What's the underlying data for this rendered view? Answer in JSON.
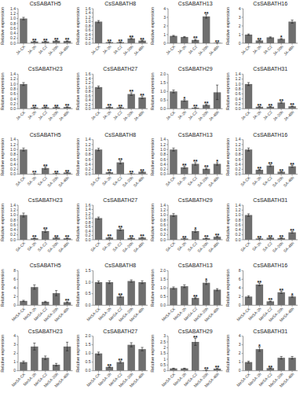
{
  "chart_data": [
    {
      "type": "bar",
      "title": "CsSABATH5",
      "y_label": "Relative expression",
      "categories": [
        "JA-CK",
        "JA-2h",
        "JA-C2",
        "JA-20h",
        "JA-48h"
      ],
      "values": [
        1.0,
        0.07,
        0.07,
        0.1,
        0.09
      ],
      "errors": [
        0.05,
        0.01,
        0.01,
        0.01,
        0.01
      ],
      "annotations": [
        null,
        "**",
        "**",
        "**",
        "**"
      ],
      "color": "#6e6e6e",
      "ylim": [
        0,
        1.4
      ],
      "yticks": [
        {
          "value": 0.0,
          "label": "0.0"
        },
        0.2,
        0.4,
        0.6,
        0.8,
        {
          "value": 1.0,
          "label": "1.0"
        },
        1.2,
        1.4
      ]
    },
    {
      "type": "bar",
      "title": "CsSABATH8",
      "y_label": "Relative expression",
      "categories": [
        "JA-CK",
        "JA-2h",
        "JA-C2",
        "JA-20h",
        "JA-48h"
      ],
      "values": [
        1.0,
        0.05,
        0.05,
        0.22,
        0.12
      ],
      "errors": [
        0.05,
        0.01,
        0.01,
        0.03,
        0.02
      ],
      "annotations": [
        null,
        "**",
        "**",
        "**",
        "**"
      ],
      "color": "#6e6e6e",
      "ylim": [
        0,
        1.6
      ],
      "yticks": [
        {
          "value": 0.0,
          "label": "0.0"
        },
        0.2,
        0.4,
        0.6,
        0.8,
        {
          "value": 1.0,
          "label": "1.0"
        },
        1.2,
        1.4,
        1.6
      ]
    },
    {
      "type": "bar",
      "title": "CsSABATH13",
      "y_label": "Relative expression",
      "categories": [
        "JA-CK",
        "JA-2h",
        "JA-C2",
        "JA-20h",
        "JA-48h"
      ],
      "values": [
        0.85,
        0.72,
        0.38,
        3.1,
        0.04
      ],
      "errors": [
        0.06,
        0.06,
        0.08,
        0.2,
        0.005
      ],
      "annotations": [
        null,
        null,
        "**",
        "**",
        "**"
      ],
      "color": "#6e6e6e",
      "ylim": [
        0,
        4.0
      ],
      "yticks": [
        0,
        1,
        2,
        3,
        4
      ]
    },
    {
      "type": "bar",
      "title": "CsSABATH16",
      "y_label": "Relative expression",
      "categories": [
        "JA-CK",
        "JA-2h",
        "JA-C2",
        "JA-20h",
        "JA-48h"
      ],
      "values": [
        1.0,
        0.32,
        0.68,
        0.5,
        2.5
      ],
      "errors": [
        0.08,
        0.04,
        0.06,
        0.05,
        0.18
      ],
      "annotations": [
        null,
        "**",
        null,
        "*",
        null
      ],
      "color": "#6e6e6e",
      "ylim": [
        0,
        4.0
      ],
      "yticks": [
        0,
        1,
        2,
        3,
        4
      ]
    },
    {
      "type": "bar",
      "title": "CsSABATH23",
      "y_label": "Relative expression",
      "categories": [
        "JA-CK",
        "JA-2h",
        "JA-C2",
        "JA-20h",
        "JA-48h"
      ],
      "values": [
        1.0,
        0.05,
        0.06,
        0.06,
        0.07
      ],
      "errors": [
        0.06,
        0.005,
        0.008,
        0.008,
        0.008
      ],
      "annotations": [
        null,
        "**",
        "**",
        "**",
        "**"
      ],
      "color": "#6e6e6e",
      "ylim": [
        0,
        1.4
      ],
      "yticks": [
        {
          "value": 0.0,
          "label": "0.0"
        },
        0.2,
        0.4,
        0.6,
        0.8,
        {
          "value": 1.0,
          "label": "1.0"
        },
        1.2,
        1.4
      ]
    },
    {
      "type": "bar",
      "title": "CsSABATH27",
      "y_label": "Relative expression",
      "categories": [
        "JA-CK",
        "JA-2h",
        "JA-C2",
        "JA-20h",
        "JA-48h"
      ],
      "values": [
        1.0,
        0.08,
        0.06,
        0.68,
        0.52
      ],
      "errors": [
        0.05,
        0.01,
        0.01,
        0.06,
        0.05
      ],
      "annotations": [
        null,
        "**",
        "**",
        "**",
        "**"
      ],
      "color": "#6e6e6e",
      "ylim": [
        0,
        1.6
      ],
      "yticks": [
        {
          "value": 0.0,
          "label": "0.0"
        },
        0.2,
        0.4,
        0.6,
        0.8,
        {
          "value": 1.0,
          "label": "1.0"
        },
        1.2,
        1.4,
        1.6
      ]
    },
    {
      "type": "bar",
      "title": "CsSABATH29",
      "y_label": "Relative expression",
      "categories": [
        "JA-CK",
        "JA-2h",
        "JA-C2",
        "JA-20h",
        "JA-48h"
      ],
      "values": [
        1.0,
        0.48,
        0.06,
        0.22,
        0.95
      ],
      "errors": [
        0.08,
        0.05,
        0.01,
        0.03,
        0.42
      ],
      "annotations": [
        null,
        "*",
        "**",
        "**",
        null
      ],
      "color": "#6e6e6e",
      "ylim": [
        0,
        2.0
      ],
      "yticks": [
        {
          "value": 0.0,
          "label": "0.0"
        },
        0.5,
        {
          "value": 1.0,
          "label": "1.0"
        },
        1.5,
        {
          "value": 2.0,
          "label": "2.0"
        }
      ]
    },
    {
      "type": "bar",
      "title": "CsSABATH31",
      "y_label": "Relative expression",
      "categories": [
        "JA-CK",
        "JA-2h",
        "JA-C2",
        "JA-20h",
        "JA-48h"
      ],
      "values": [
        1.0,
        0.08,
        0.08,
        0.25,
        0.1
      ],
      "errors": [
        0.06,
        0.01,
        0.01,
        0.03,
        0.01
      ],
      "annotations": [
        null,
        "**",
        "**",
        "**",
        "**"
      ],
      "color": "#6e6e6e",
      "ylim": [
        0,
        1.4
      ],
      "yticks": [
        {
          "value": 0.0,
          "label": "0.0"
        },
        0.2,
        0.4,
        0.6,
        0.8,
        {
          "value": 1.0,
          "label": "1.0"
        },
        1.2,
        1.4
      ]
    },
    {
      "type": "bar",
      "title": "CsSABATH5",
      "y_label": "Relative expression",
      "categories": [
        "SA-CK",
        "SA-2h",
        "SA-C2",
        "SA-20h",
        "SA-48h"
      ],
      "values": [
        1.0,
        0.02,
        0.25,
        0.04,
        0.07
      ],
      "errors": [
        0.06,
        0.003,
        0.04,
        0.005,
        0.01
      ],
      "annotations": [
        null,
        "**",
        "**",
        "**",
        "**"
      ],
      "color": "#6e6e6e",
      "ylim": [
        0,
        1.4
      ],
      "yticks": [
        {
          "value": 0.0,
          "label": "0.0"
        },
        0.2,
        0.4,
        0.6,
        0.8,
        {
          "value": 1.0,
          "label": "1.0"
        },
        1.2,
        1.4
      ]
    },
    {
      "type": "bar",
      "title": "CsSABATH8",
      "y_label": "Relative expression",
      "categories": [
        "SA-CK",
        "SA-2h",
        "SA-C2",
        "SA-20h",
        "SA-48h"
      ],
      "values": [
        1.0,
        0.08,
        0.48,
        0.03,
        0.1
      ],
      "errors": [
        0.05,
        0.01,
        0.06,
        0.005,
        0.015
      ],
      "annotations": [
        null,
        "**",
        "**",
        "**",
        "**"
      ],
      "color": "#6e6e6e",
      "ylim": [
        0,
        1.4
      ],
      "yticks": [
        {
          "value": 0.0,
          "label": "0.0"
        },
        0.2,
        0.4,
        0.6,
        0.8,
        {
          "value": 1.0,
          "label": "1.0"
        },
        1.2,
        1.4
      ]
    },
    {
      "type": "bar",
      "title": "CsSABATH13",
      "y_label": "Relative expression",
      "categories": [
        "SA-CK",
        "SA-2h",
        "SA-C2",
        "SA-20h",
        "SA-48h"
      ],
      "values": [
        1.0,
        0.28,
        0.42,
        0.22,
        0.42
      ],
      "errors": [
        0.06,
        0.04,
        0.05,
        0.03,
        0.05
      ],
      "annotations": [
        null,
        "**",
        "**",
        "**",
        "*"
      ],
      "color": "#6e6e6e",
      "ylim": [
        0,
        1.4
      ],
      "yticks": [
        {
          "value": 0.0,
          "label": "0.0"
        },
        0.2,
        0.4,
        0.6,
        0.8,
        {
          "value": 1.0,
          "label": "1.0"
        },
        1.2,
        1.4
      ]
    },
    {
      "type": "bar",
      "title": "CsSABATH16",
      "y_label": "Relative expression",
      "categories": [
        "SA-CK",
        "SA-2h",
        "SA-C2",
        "SA-20h",
        "SA-48h"
      ],
      "values": [
        1.0,
        0.18,
        0.35,
        0.1,
        0.32
      ],
      "errors": [
        0.06,
        0.02,
        0.04,
        0.01,
        0.04
      ],
      "annotations": [
        null,
        "**",
        "**",
        "**",
        "**"
      ],
      "color": "#6e6e6e",
      "ylim": [
        0,
        1.4
      ],
      "yticks": [
        {
          "value": 0.0,
          "label": "0.0"
        },
        0.2,
        0.4,
        0.6,
        0.8,
        {
          "value": 1.0,
          "label": "1.0"
        },
        1.2,
        1.4
      ]
    },
    {
      "type": "bar",
      "title": "CsSABATH23",
      "y_label": "Relative expression",
      "categories": [
        "SA-CK",
        "SA-2h",
        "SA-C2",
        "SA-20h",
        "SA-48h"
      ],
      "values": [
        1.0,
        0.06,
        0.35,
        0.08,
        0.06
      ],
      "errors": [
        0.08,
        0.01,
        0.05,
        0.01,
        0.01
      ],
      "annotations": [
        null,
        "**",
        "**",
        "**",
        "**"
      ],
      "color": "#6e6e6e",
      "ylim": [
        0,
        1.4
      ],
      "yticks": [
        {
          "value": 0.0,
          "label": "0.0"
        },
        0.2,
        0.4,
        0.6,
        0.8,
        {
          "value": 1.0,
          "label": "1.0"
        },
        1.2,
        1.4
      ]
    },
    {
      "type": "bar",
      "title": "CsSABATH27",
      "y_label": "Relative expression",
      "categories": [
        "SA-CK",
        "SA-2h",
        "SA-C2",
        "SA-20h",
        "SA-48h"
      ],
      "values": [
        1.0,
        0.1,
        0.48,
        0.08,
        0.1
      ],
      "errors": [
        0.05,
        0.01,
        0.05,
        0.01,
        0.01
      ],
      "annotations": [
        null,
        "**",
        "**",
        "**",
        "**"
      ],
      "color": "#6e6e6e",
      "ylim": [
        0,
        1.6
      ],
      "yticks": [
        {
          "value": 0.0,
          "label": "0.0"
        },
        0.2,
        0.4,
        0.6,
        0.8,
        {
          "value": 1.0,
          "label": "1.0"
        },
        1.2,
        1.4,
        1.6
      ]
    },
    {
      "type": "bar",
      "title": "CsSABATH29",
      "y_label": "Relative expression",
      "categories": [
        "SA-CK",
        "SA-2h",
        "SA-C2",
        "SA-20h",
        "SA-48h"
      ],
      "values": [
        1.0,
        0.05,
        0.35,
        0.06,
        0.12
      ],
      "errors": [
        0.06,
        0.01,
        0.05,
        0.01,
        0.02
      ],
      "annotations": [
        null,
        "**",
        "*",
        "**",
        "**"
      ],
      "color": "#6e6e6e",
      "ylim": [
        0,
        1.4
      ],
      "yticks": [
        {
          "value": 0.0,
          "label": "0.0"
        },
        0.2,
        0.4,
        0.6,
        0.8,
        {
          "value": 1.0,
          "label": "1.0"
        },
        1.2,
        1.4
      ]
    },
    {
      "type": "bar",
      "title": "CsSABATH31",
      "y_label": "Relative expression",
      "categories": [
        "SA-CK",
        "SA-2h",
        "SA-C2",
        "SA-20h",
        "SA-48h"
      ],
      "values": [
        1.0,
        0.05,
        0.08,
        0.07,
        0.3
      ],
      "errors": [
        0.05,
        0.01,
        0.01,
        0.01,
        0.03
      ],
      "annotations": [
        null,
        "**",
        "**",
        "**",
        "**"
      ],
      "color": "#6e6e6e",
      "ylim": [
        0,
        1.4
      ],
      "yticks": [
        {
          "value": 0.0,
          "label": "0.0"
        },
        0.2,
        0.4,
        0.6,
        0.8,
        {
          "value": 1.0,
          "label": "1.0"
        },
        1.2,
        1.4
      ]
    },
    {
      "type": "bar",
      "title": "CsSABATH5",
      "y_label": "Relative expression",
      "categories": [
        "MeSA-CK",
        "MeSA-2h",
        "MeSA-C2",
        "MeSA-20h",
        "MeSA-48h"
      ],
      "values": [
        1.0,
        4.2,
        0.8,
        2.8,
        0.7
      ],
      "errors": [
        0.15,
        0.5,
        0.12,
        0.6,
        0.1
      ],
      "annotations": [
        null,
        null,
        null,
        null,
        "**"
      ],
      "color": "#6e6e6e",
      "ylim": [
        0,
        8.0
      ],
      "yticks": [
        0,
        2,
        4,
        6,
        8
      ]
    },
    {
      "type": "bar",
      "title": "CsSABATH8",
      "y_label": "Relative expression",
      "categories": [
        "MeSA-CK",
        "MeSA-2h",
        "MeSA-C2",
        "MeSA-20h",
        "MeSA-48h"
      ],
      "values": [
        1.0,
        1.0,
        0.38,
        1.05,
        1.0
      ],
      "errors": [
        0.05,
        0.06,
        0.04,
        0.05,
        0.06
      ],
      "annotations": [
        null,
        null,
        "**",
        null,
        null
      ],
      "color": "#6e6e6e",
      "ylim": [
        0,
        1.5
      ],
      "yticks": [
        {
          "value": 0.0,
          "label": "0.0"
        },
        0.5,
        {
          "value": 1.0,
          "label": "1.0"
        },
        1.5
      ]
    },
    {
      "type": "bar",
      "title": "CsSABATH13",
      "y_label": "Relative expression",
      "categories": [
        "MeSA-CK",
        "MeSA-2h",
        "MeSA-C2",
        "MeSA-20h",
        "MeSA-48h"
      ],
      "values": [
        1.0,
        1.1,
        0.42,
        1.3,
        0.9
      ],
      "errors": [
        0.06,
        0.08,
        0.04,
        0.1,
        0.06
      ],
      "annotations": [
        null,
        null,
        "**",
        "*",
        null
      ],
      "color": "#6e6e6e",
      "ylim": [
        0,
        2.0
      ],
      "yticks": [
        {
          "value": 0.0,
          "label": "0.0"
        },
        0.5,
        {
          "value": 1.0,
          "label": "1.0"
        },
        1.5,
        {
          "value": 2.0,
          "label": "2.0"
        }
      ]
    },
    {
      "type": "bar",
      "title": "CsSABATH16",
      "y_label": "Relative expression",
      "categories": [
        "MeSA-CK",
        "MeSA-2h",
        "MeSA-C2",
        "MeSA-20h",
        "MeSA-48h"
      ],
      "values": [
        2.0,
        4.8,
        0.9,
        3.0,
        2.0
      ],
      "errors": [
        0.2,
        0.3,
        0.08,
        0.25,
        0.2
      ],
      "annotations": [
        null,
        "**",
        "**",
        "**",
        "*"
      ],
      "color": "#6e6e6e",
      "ylim": [
        0,
        8.0
      ],
      "yticks": [
        0,
        2,
        4,
        6,
        8
      ]
    },
    {
      "type": "bar",
      "title": "CsSABATH23",
      "y_label": "Relative expression",
      "categories": [
        "MeSA-CK",
        "MeSA-2h",
        "MeSA-C2",
        "MeSA-20h",
        "MeSA-48h"
      ],
      "values": [
        1.0,
        2.8,
        1.5,
        0.7,
        2.8
      ],
      "errors": [
        0.12,
        0.4,
        0.2,
        0.15,
        0.5
      ],
      "annotations": [
        null,
        null,
        null,
        null,
        null
      ],
      "color": "#6e6e6e",
      "ylim": [
        0,
        4.0
      ],
      "yticks": [
        0,
        1,
        2,
        3,
        4
      ]
    },
    {
      "type": "bar",
      "title": "CsSABATH27",
      "y_label": "Relative expression",
      "categories": [
        "MeSA-CK",
        "MeSA-2h",
        "MeSA-C2",
        "MeSA-20h",
        "MeSA-48h"
      ],
      "values": [
        1.0,
        0.22,
        0.5,
        1.5,
        1.25
      ],
      "errors": [
        0.08,
        0.03,
        0.05,
        0.12,
        0.1
      ],
      "annotations": [
        null,
        "**",
        "**",
        null,
        null
      ],
      "color": "#6e6e6e",
      "ylim": [
        0,
        2.0
      ],
      "yticks": [
        {
          "value": 0.0,
          "label": "0.0"
        },
        0.5,
        {
          "value": 1.0,
          "label": "1.0"
        },
        1.5,
        {
          "value": 2.0,
          "label": "2.0"
        }
      ]
    },
    {
      "type": "bar",
      "title": "CsSABATH29",
      "y_label": "Relative expression",
      "categories": [
        "MeSA-CK",
        "MeSA-2h",
        "MeSA-C2",
        "MeSA-20h",
        "MeSA-48h"
      ],
      "values": [
        0.2,
        0.2,
        2.5,
        0.05,
        0.18
      ],
      "errors": [
        0.02,
        0.02,
        0.3,
        0.005,
        0.015
      ],
      "annotations": [
        null,
        null,
        "**",
        "**",
        "**"
      ],
      "color": "#6e6e6e",
      "ylim": [
        0,
        3.0
      ],
      "yticks": [
        0,
        0.5,
        1,
        1.5,
        2,
        2.5,
        3
      ]
    },
    {
      "type": "bar",
      "title": "CsSABATH31",
      "y_label": "Relative expression",
      "categories": [
        "MeSA-CK",
        "MeSA-2h",
        "MeSA-C2",
        "MeSA-20h",
        "MeSA-48h"
      ],
      "values": [
        1.0,
        2.5,
        0.3,
        1.5,
        1.5
      ],
      "errors": [
        0.1,
        0.25,
        0.03,
        0.15,
        0.15
      ],
      "annotations": [
        null,
        "*",
        "**",
        null,
        null
      ],
      "color": "#6e6e6e",
      "ylim": [
        0,
        4.0
      ],
      "yticks": [
        0,
        1,
        2,
        3,
        4
      ]
    }
  ]
}
